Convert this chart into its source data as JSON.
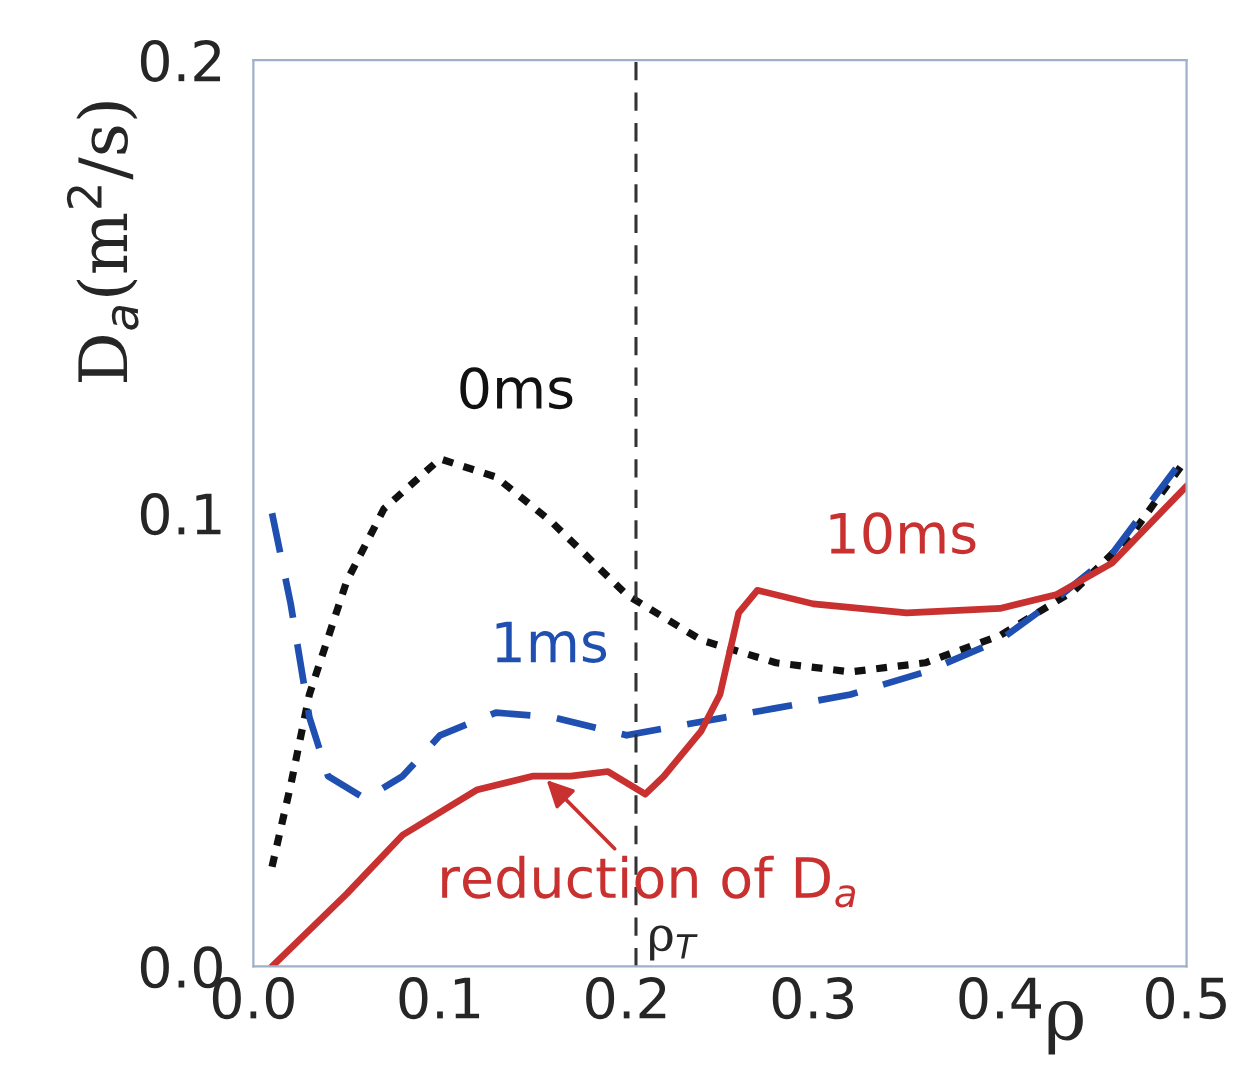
{
  "chart_data": {
    "type": "line",
    "xlabel": "ρ",
    "ylabel": "D$_{a}$(m$^{2}$/s)",
    "xlim": [
      0,
      0.5
    ],
    "ylim": [
      0,
      0.2
    ],
    "xticks": [
      {
        "value": 0,
        "label": "0.0"
      },
      0.1,
      0.2,
      0.3,
      0.4,
      0.5
    ],
    "yticks": [
      {
        "value": 0,
        "label": "0.0"
      },
      0.1,
      0.2
    ],
    "grid": false,
    "legend": false,
    "series": [
      {
        "name": "0ms",
        "color": "#111111",
        "line_style": "dotted",
        "x": [
          0.01,
          0.02,
          0.03,
          0.05,
          0.07,
          0.1,
          0.13,
          0.16,
          0.2,
          0.24,
          0.28,
          0.32,
          0.36,
          0.4,
          0.44,
          0.47,
          0.5
        ],
        "values": [
          0.022,
          0.04,
          0.06,
          0.085,
          0.101,
          0.112,
          0.108,
          0.098,
          0.082,
          0.072,
          0.067,
          0.065,
          0.067,
          0.073,
          0.083,
          0.095,
          0.112
        ]
      },
      {
        "name": "1ms",
        "color": "#1f4fb0",
        "line_style": "dashed",
        "x": [
          0.01,
          0.02,
          0.03,
          0.04,
          0.06,
          0.08,
          0.1,
          0.13,
          0.16,
          0.2,
          0.24,
          0.28,
          0.32,
          0.36,
          0.4,
          0.43,
          0.46,
          0.5
        ],
        "values": [
          0.1,
          0.08,
          0.055,
          0.042,
          0.037,
          0.042,
          0.051,
          0.056,
          0.055,
          0.051,
          0.054,
          0.057,
          0.06,
          0.065,
          0.072,
          0.081,
          0.091,
          0.113
        ]
      },
      {
        "name": "10ms",
        "color": "#c8312f",
        "line_style": "solid",
        "x": [
          0.01,
          0.05,
          0.08,
          0.12,
          0.15,
          0.17,
          0.19,
          0.21,
          0.22,
          0.24,
          0.25,
          0.26,
          0.27,
          0.3,
          0.35,
          0.4,
          0.43,
          0.46,
          0.5
        ],
        "values": [
          0.0,
          0.016,
          0.029,
          0.039,
          0.042,
          0.042,
          0.043,
          0.038,
          0.042,
          0.052,
          0.06,
          0.078,
          0.083,
          0.08,
          0.078,
          0.079,
          0.082,
          0.089,
          0.106
        ]
      }
    ],
    "ref_lines": [
      {
        "axis": "x",
        "value": 0.205,
        "label": "ρ$_{T}$",
        "color": "#333333",
        "line_style": "dashed"
      }
    ],
    "annotations": [
      {
        "text": "reduction of D$_{a}$",
        "x": 0.155,
        "y": 0.042
      }
    ]
  }
}
